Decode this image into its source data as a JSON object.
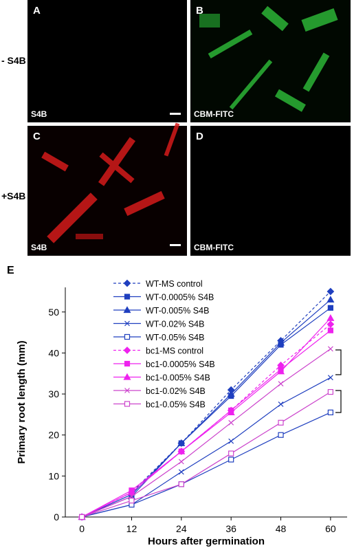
{
  "panels": [
    {
      "letter": "A",
      "caption": "S4B"
    },
    {
      "letter": "B",
      "caption": "CBM-FITC"
    },
    {
      "letter": "C",
      "caption": "S4B"
    },
    {
      "letter": "D",
      "caption": "CBM-FITC"
    }
  ],
  "row_labels": [
    "- S4B",
    "+S4B"
  ],
  "chart_data": {
    "type": "line",
    "panel_letter": "E",
    "x_label": "Hours after germination",
    "y_label": "Primary root length (mm)",
    "x": [
      0,
      12,
      24,
      36,
      48,
      60
    ],
    "xlim": [
      -4,
      64
    ],
    "xticks": [
      0,
      12,
      24,
      36,
      48,
      60
    ],
    "ylim": [
      0,
      56
    ],
    "yticks": [
      0,
      10,
      20,
      30,
      40,
      50
    ],
    "series": [
      {
        "name": "WT-MS control",
        "color": "#1f3fbf",
        "marker": "diamond",
        "linestyle": "dashed",
        "values": [
          0,
          6,
          18,
          31,
          43,
          55
        ]
      },
      {
        "name": "WT-0.0005% S4B",
        "color": "#1f3fbf",
        "marker": "square",
        "linestyle": "solid",
        "values": [
          0,
          5.5,
          18,
          29.5,
          42,
          51
        ]
      },
      {
        "name": "WT-0.005% S4B",
        "color": "#1f3fbf",
        "marker": "triangle",
        "linestyle": "solid",
        "values": [
          0,
          5,
          18,
          30,
          42.5,
          53
        ]
      },
      {
        "name": "WT-0.02% S4B",
        "color": "#1f3fbf",
        "marker": "x",
        "linestyle": "solid",
        "values": [
          0,
          3,
          11,
          18.5,
          27.5,
          34
        ]
      },
      {
        "name": "WT-0.05% S4B",
        "color": "#1f3fbf",
        "marker": "open-square",
        "linestyle": "solid",
        "values": [
          0,
          3,
          8,
          14,
          20,
          25.5
        ]
      },
      {
        "name": "bc1-MS control",
        "color": "#ee22ee",
        "marker": "diamond",
        "linestyle": "dashed",
        "values": [
          0,
          6,
          16,
          26,
          37,
          47
        ]
      },
      {
        "name": "bc1-0.0005% S4B",
        "color": "#ee22ee",
        "marker": "square",
        "linestyle": "solid",
        "values": [
          0,
          6.5,
          16,
          26,
          36,
          45.5
        ]
      },
      {
        "name": "bc1-0.005% S4B",
        "color": "#ee22ee",
        "marker": "triangle",
        "linestyle": "solid",
        "values": [
          0,
          6,
          16,
          25.5,
          35.5,
          48.5
        ]
      },
      {
        "name": "bc1-0.02% S4B",
        "color": "#cc44cc",
        "marker": "x",
        "linestyle": "solid",
        "values": [
          0,
          5,
          13.5,
          23,
          32.5,
          41
        ]
      },
      {
        "name": "bc1-0.05% S4B",
        "color": "#cc44cc",
        "marker": "open-square",
        "linestyle": "solid",
        "values": [
          0,
          4,
          8,
          15.5,
          23,
          30.5
        ]
      }
    ]
  }
}
